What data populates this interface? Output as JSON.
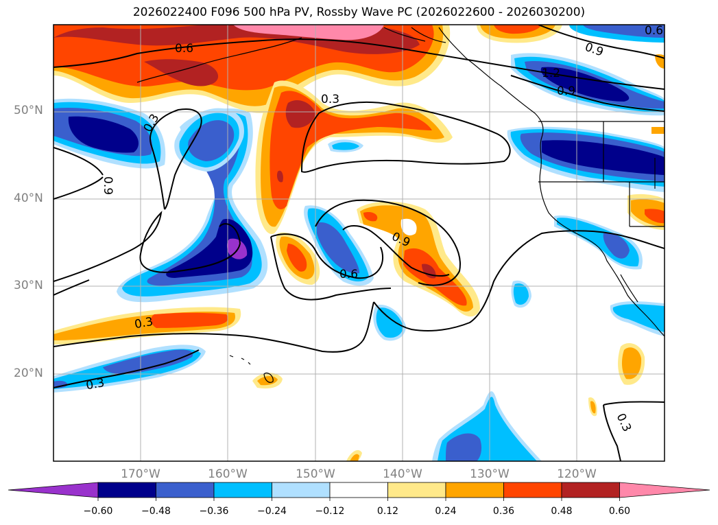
{
  "title": "2026022400 F096 500 hPa PV, Rossby Wave PC (2026022600 - 2026030200)",
  "map": {
    "lon_range": [
      -180,
      -110
    ],
    "lat_range": [
      10,
      60
    ],
    "lat_labels": [
      {
        "lat": 50,
        "text": "50°N"
      },
      {
        "lat": 40,
        "text": "40°N"
      },
      {
        "lat": 30,
        "text": "30°N"
      },
      {
        "lat": 20,
        "text": "20°N"
      }
    ],
    "lon_labels": [
      {
        "lon": -170,
        "text": "170°W"
      },
      {
        "lon": -160,
        "text": "160°W"
      },
      {
        "lon": -150,
        "text": "150°W"
      },
      {
        "lon": -140,
        "text": "140°W"
      },
      {
        "lon": -130,
        "text": "130°W"
      },
      {
        "lon": -120,
        "text": "120°W"
      }
    ],
    "contour_labels": [
      "0.6",
      "0.3",
      "0.3",
      "0.9",
      "0.9",
      "0.6",
      "0.3",
      "0.3",
      "0.9",
      "1.2",
      "0.9",
      "0.3",
      "0.6"
    ]
  },
  "colorbar": {
    "ticks": [
      "−0.60",
      "−0.48",
      "−0.36",
      "−0.24",
      "−0.12",
      "0.12",
      "0.24",
      "0.36",
      "0.48",
      "0.60"
    ],
    "colors": [
      "#9932cc",
      "#00008b",
      "#3a5fcd",
      "#00bfff",
      "#b0e0ff",
      "#ffffff",
      "#ffe98a",
      "#ffa500",
      "#ff4500",
      "#b22222",
      "#ff88aa"
    ]
  }
}
